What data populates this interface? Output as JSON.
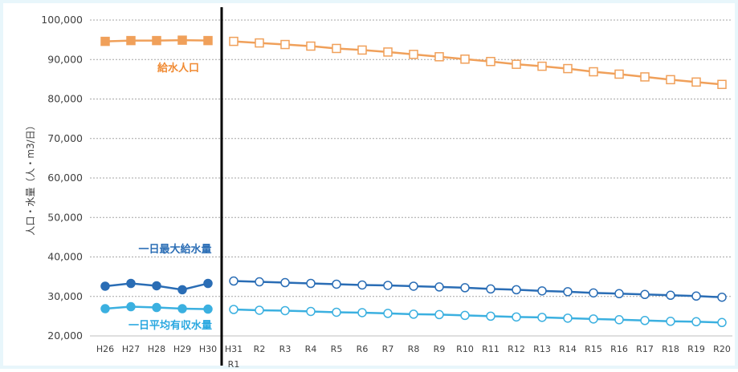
{
  "chart_data": {
    "type": "line",
    "ylabel": "人口・水量（人・m3/日）",
    "ylim": [
      20000,
      100000
    ],
    "yticks": [
      20000,
      30000,
      40000,
      50000,
      60000,
      70000,
      80000,
      90000,
      100000
    ],
    "ytick_labels": [
      "20,000",
      "30,000",
      "40,000",
      "50,000",
      "60,000",
      "70,000",
      "80,000",
      "90,000",
      "100,000"
    ],
    "grid": true,
    "divider_after_category": "H30",
    "categories": [
      "H26",
      "H27",
      "H28",
      "H29",
      "H30",
      "H31",
      "R2",
      "R3",
      "R4",
      "R5",
      "R6",
      "R7",
      "R8",
      "R9",
      "R10",
      "R11",
      "R12",
      "R13",
      "R14",
      "R15",
      "R16",
      "R17",
      "R18",
      "R19",
      "R20"
    ],
    "category_sublabels": {
      "H31": "R1"
    },
    "actual_count": 5,
    "series": [
      {
        "name": "給水人口",
        "color": "#f0a05a",
        "label_color": "#f08a32",
        "marker": "square",
        "values": [
          94600,
          94800,
          94800,
          94900,
          94800,
          94600,
          94200,
          93800,
          93400,
          92800,
          92400,
          91900,
          91300,
          90700,
          90100,
          89500,
          88800,
          88300,
          87700,
          86900,
          86300,
          85600,
          84900,
          84300,
          83700
        ]
      },
      {
        "name": "一日最大給水量",
        "color": "#2a6db5",
        "label_color": "#2a6db5",
        "marker": "circle",
        "values": [
          32600,
          33300,
          32700,
          31700,
          33300,
          33900,
          33700,
          33500,
          33300,
          33100,
          32900,
          32800,
          32600,
          32400,
          32200,
          31900,
          31700,
          31400,
          31200,
          30900,
          30700,
          30500,
          30300,
          30100,
          29800
        ]
      },
      {
        "name": "一日平均有収水量",
        "color": "#3bb0e0",
        "label_color": "#2aa8e0",
        "marker": "circle",
        "values": [
          26900,
          27400,
          27200,
          26900,
          26800,
          26700,
          26500,
          26400,
          26200,
          26000,
          25900,
          25700,
          25500,
          25400,
          25200,
          25000,
          24800,
          24700,
          24500,
          24300,
          24100,
          23900,
          23700,
          23600,
          23400
        ]
      }
    ]
  }
}
